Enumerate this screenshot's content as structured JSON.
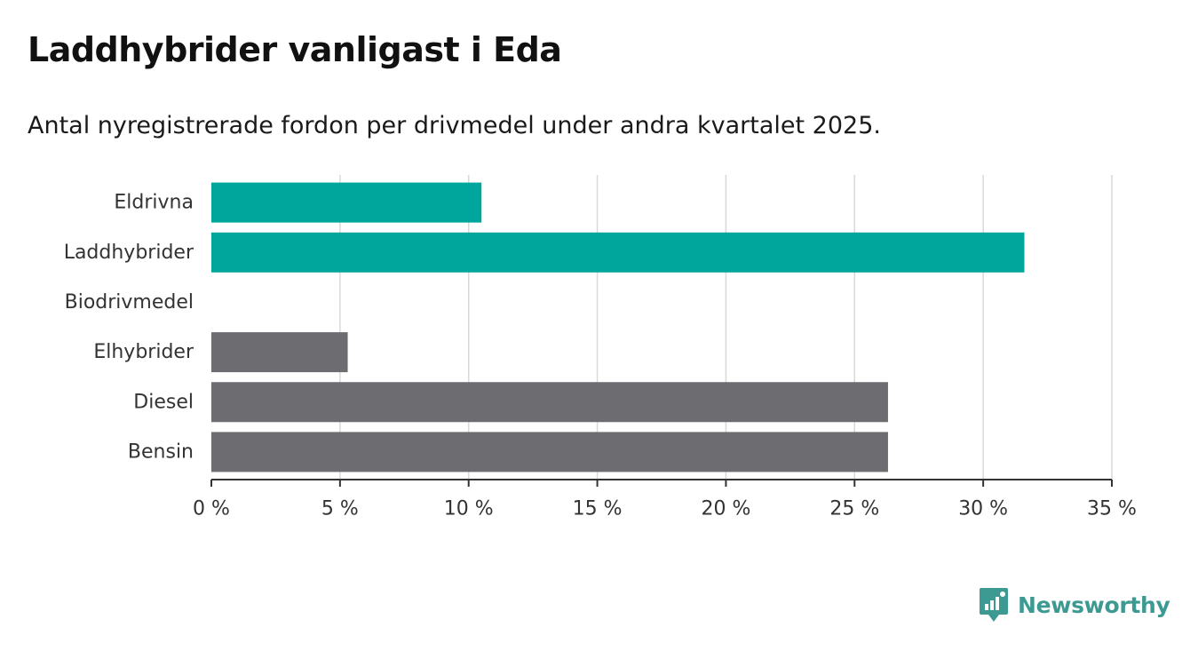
{
  "title": "Laddhybrider vanligast i Eda",
  "subtitle": "Antal nyregistrerade fordon per drivmedel under andra kvartalet 2025.",
  "brand": {
    "name": "Newsworthy",
    "color": "#3d9a92",
    "icon": "newsworthy-logo-icon"
  },
  "colors": {
    "highlight": "#00a59b",
    "default": "#6d6c71",
    "grid": "#d9d9d9",
    "axis": "#333333",
    "label": "#333333"
  },
  "chart_data": {
    "type": "bar",
    "orientation": "horizontal",
    "categories": [
      "Eldrivna",
      "Laddhybrider",
      "Biodrivmedel",
      "Elhybrider",
      "Diesel",
      "Bensin"
    ],
    "values": [
      10.5,
      31.6,
      0,
      5.3,
      26.3,
      26.3
    ],
    "bar_colors": [
      "#00a59b",
      "#00a59b",
      "#00a59b",
      "#6d6c71",
      "#6d6c71",
      "#6d6c71"
    ],
    "xlim": [
      0,
      35
    ],
    "ticks": [
      0,
      5,
      10,
      15,
      20,
      25,
      30,
      35
    ],
    "tick_labels": [
      "0 %",
      "5 %",
      "10 %",
      "15 %",
      "20 %",
      "25 %",
      "30 %",
      "35 %"
    ],
    "xlabel": "",
    "ylabel": "",
    "grid": true,
    "legend": "none"
  }
}
